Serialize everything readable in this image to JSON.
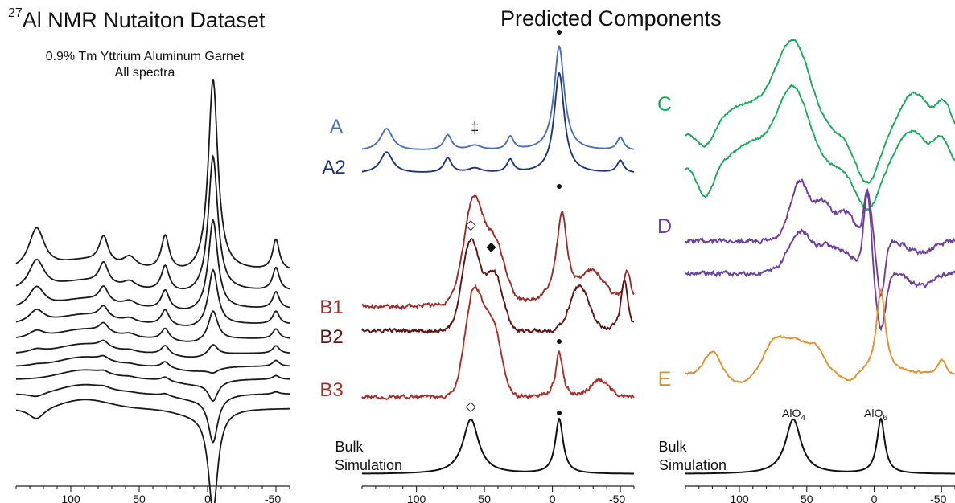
{
  "figure": {
    "title_sup": "27",
    "title_main": "Al NMR Nutaiton Dataset",
    "subtitle_1": "0.9% Tm Yttrium Aluminum Garnet",
    "subtitle_2": "All spectra",
    "right_title": "Predicted Components",
    "bulk_label_1": "Bulk",
    "bulk_label_2": "Simulation",
    "alo4_label": "AlO",
    "alo4_sub": "4",
    "alo6_label": "AlO",
    "alo6_sub": "6",
    "dagger_symbol": "‡"
  },
  "chart_data": [
    {
      "type": "line",
      "panel": "nutation-dataset",
      "x_axis": {
        "reversed": true,
        "range": [
          140,
          -60
        ],
        "ticks": [
          100,
          50,
          0,
          -50
        ],
        "tick_labels": [
          "100",
          "50",
          "0",
          "-50"
        ]
      },
      "series_count": 10,
      "peak_positions_ppm": [
        125,
        76,
        57,
        31,
        -4,
        -50
      ],
      "series": [
        {
          "peak_heights": [
            0.55,
            0.35,
            0.15,
            0.45,
            2.55,
            0.4
          ]
        },
        {
          "peak_heights": [
            0.4,
            0.28,
            0.1,
            0.33,
            1.8,
            0.3
          ]
        },
        {
          "peak_heights": [
            0.28,
            0.2,
            0.08,
            0.25,
            1.2,
            0.22
          ]
        },
        {
          "peak_heights": [
            0.18,
            0.15,
            0.06,
            0.2,
            0.75,
            0.17
          ]
        },
        {
          "peak_heights": [
            0.1,
            0.12,
            0.05,
            0.15,
            0.4,
            0.13
          ]
        },
        {
          "peak_heights": [
            0.05,
            0.08,
            0.03,
            0.12,
            0.15,
            0.1
          ]
        },
        {
          "peak_heights": [
            0.02,
            0.05,
            0.02,
            0.08,
            -0.05,
            0.08
          ]
        },
        {
          "peak_heights": [
            0.0,
            0.03,
            0.02,
            0.05,
            -0.25,
            0.05
          ]
        },
        {
          "peak_heights": [
            -0.05,
            0.02,
            0.01,
            0.03,
            -0.6,
            0.03
          ]
        },
        {
          "peak_heights": [
            -0.15,
            0.0,
            0.0,
            0.0,
            -1.3,
            0.0
          ]
        }
      ]
    },
    {
      "type": "line",
      "panel": "components-A-B",
      "x_axis": {
        "reversed": true,
        "range": [
          140,
          -60
        ],
        "ticks": [
          100,
          50,
          0,
          -50
        ],
        "tick_labels": [
          "100",
          "50",
          "0",
          "-50"
        ]
      },
      "series": [
        {
          "name": "A",
          "color": "#4a6fb5",
          "peaks_ppm": [
            122,
            77,
            31,
            -5,
            -50
          ]
        },
        {
          "name": "A2",
          "color": "#23337a",
          "peaks_ppm": [
            122,
            77,
            31,
            -5,
            -50
          ]
        },
        {
          "name": "B1",
          "color": "#9b2e2a",
          "peaks_ppm": [
            58,
            45,
            -8,
            -55
          ]
        },
        {
          "name": "B2",
          "color": "#5e1414",
          "peaks_ppm": [
            60,
            45,
            -10,
            -52
          ]
        },
        {
          "name": "B3",
          "color": "#a5302b",
          "peaks_ppm": [
            57,
            48,
            -5
          ]
        }
      ],
      "markers": [
        {
          "symbol": "●",
          "series": "A",
          "x_ppm": -5
        },
        {
          "symbol": "●",
          "series": "B1",
          "x_ppm": -5
        },
        {
          "symbol": "●",
          "series": "B3",
          "x_ppm": -5
        },
        {
          "symbol": "◇",
          "series": "B2",
          "x_ppm": 60
        },
        {
          "symbol": "◆",
          "series": "B2",
          "x_ppm": 45
        },
        {
          "symbol": "‡",
          "series": "A",
          "x_ppm": 57
        },
        {
          "symbol": "◇",
          "series": "Bulk Simulation",
          "x_ppm": 60
        },
        {
          "symbol": "●",
          "series": "Bulk Simulation",
          "x_ppm": -5
        }
      ],
      "bulk_simulation": {
        "peaks_ppm": [
          60,
          -5
        ],
        "peak_widths_ppm": [
          7,
          3.5
        ]
      }
    },
    {
      "type": "line",
      "panel": "components-C-D-E",
      "x_axis": {
        "reversed": true,
        "range": [
          140,
          -60
        ],
        "ticks": [
          100,
          50,
          0,
          -50
        ],
        "tick_labels": [
          "100",
          "50",
          "0",
          "-50"
        ]
      },
      "series": [
        {
          "name": "C",
          "color": "#1aaa5c",
          "traces": 2,
          "peaks_ppm": [
            60,
            -20
          ]
        },
        {
          "name": "D",
          "color": "#6b3fa0",
          "traces": 2,
          "peaks_ppm": [
            55,
            38,
            5
          ]
        },
        {
          "name": "E",
          "color": "#e0912e",
          "traces": 1,
          "peaks_ppm": [
            120,
            75,
            58,
            -5,
            -50
          ]
        }
      ],
      "bulk_simulation": {
        "peaks_ppm": [
          60,
          -5
        ],
        "peak_labels": [
          "AlO4",
          "AlO6"
        ]
      }
    }
  ]
}
